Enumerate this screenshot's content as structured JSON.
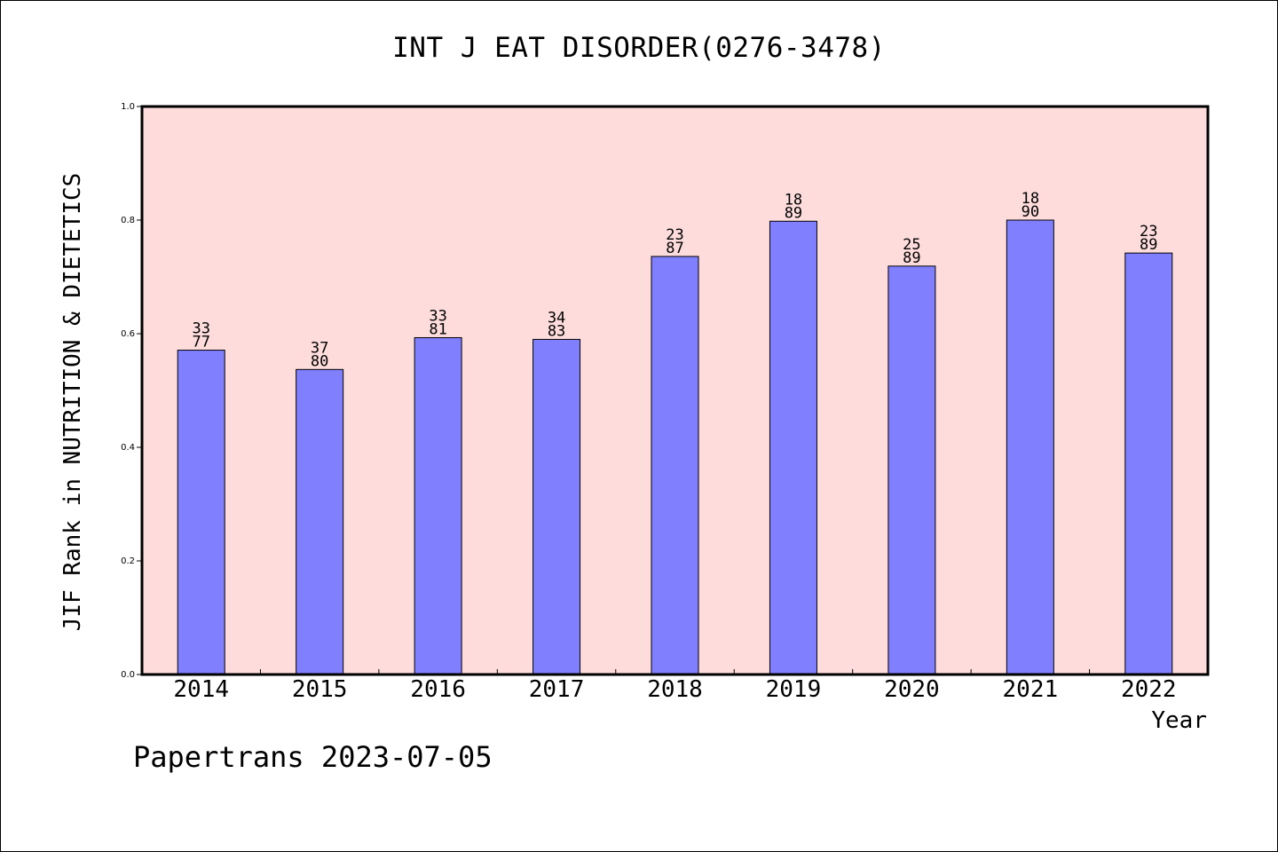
{
  "chart_data": {
    "type": "bar",
    "title": "INT J EAT DISORDER(0276-3478)",
    "xlabel": "Year",
    "ylabel": "JIF Rank in NUTRITION & DIETETICS",
    "ylim": [
      0.0,
      1.0
    ],
    "yticks": [
      "0.0",
      "0.2",
      "0.4",
      "0.6",
      "0.8",
      "1.0"
    ],
    "grid": false,
    "categories": [
      "2014",
      "2015",
      "2016",
      "2017",
      "2018",
      "2019",
      "2020",
      "2021",
      "2022"
    ],
    "series": [
      {
        "values": [
          0.571,
          0.537,
          0.593,
          0.59,
          0.736,
          0.798,
          0.719,
          0.8,
          0.742
        ],
        "labels": [
          [
            "33",
            "77"
          ],
          [
            "37",
            "80"
          ],
          [
            "33",
            "81"
          ],
          [
            "34",
            "83"
          ],
          [
            "23",
            "87"
          ],
          [
            "18",
            "89"
          ],
          [
            "25",
            "89"
          ],
          [
            "18",
            "90"
          ],
          [
            "23",
            "89"
          ]
        ]
      }
    ],
    "colors": {
      "bar": "#8080ff",
      "plot_background": "#ffdcdc",
      "axis": "#000000"
    }
  },
  "footer": {
    "text": "Papertrans 2023-07-05"
  }
}
